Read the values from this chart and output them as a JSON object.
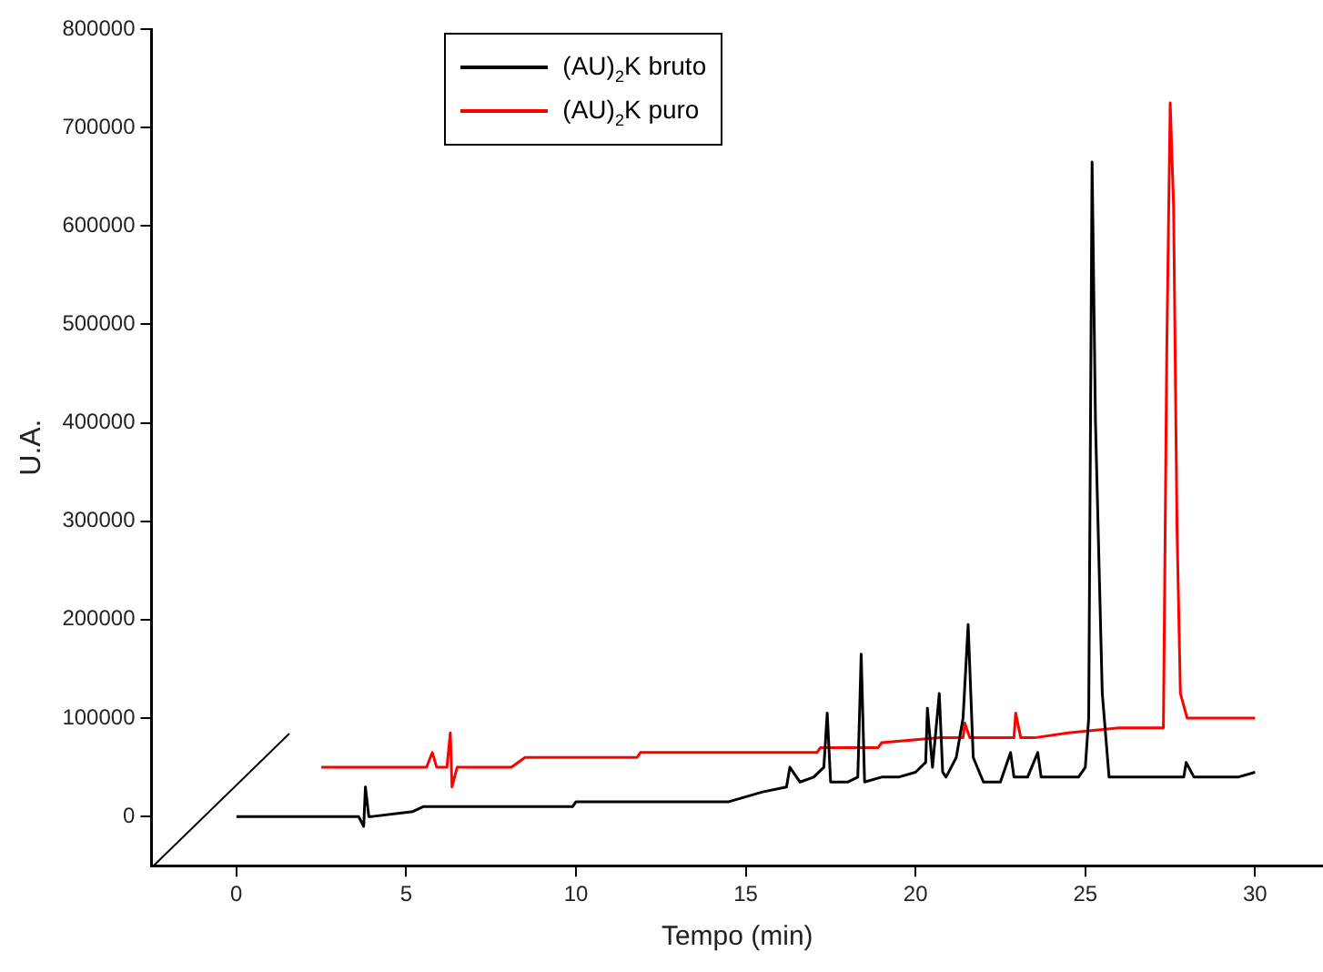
{
  "chart_data": {
    "type": "line",
    "xlabel": "Tempo (min)",
    "ylabel": "U.A.",
    "xlim": [
      -2.5,
      32
    ],
    "xticks": [
      0,
      5,
      10,
      15,
      20,
      25,
      30
    ],
    "ylim": [
      -50000,
      800000
    ],
    "yticks": [
      0,
      100000,
      200000,
      300000,
      400000,
      500000,
      600000,
      700000,
      800000
    ],
    "grid": false,
    "legend": "top",
    "marker": "none",
    "line_style": "solid",
    "series": [
      {
        "name": "(AU)$_{2}$K bruto",
        "color": "#000000",
        "x": [
          0,
          3.6,
          3.75,
          3.8,
          3.9,
          4.0,
          5.2,
          5.5,
          9.9,
          10.0,
          14.5,
          15.5,
          16.2,
          16.3,
          16.6,
          17.0,
          17.3,
          17.4,
          17.5,
          18.0,
          18.3,
          18.4,
          18.5,
          19.0,
          19.5,
          20.0,
          20.3,
          20.35,
          20.5,
          20.7,
          20.8,
          20.9,
          21.2,
          21.4,
          21.55,
          21.7,
          22.0,
          22.5,
          22.8,
          22.9,
          23.3,
          23.6,
          23.7,
          24.0,
          24.8,
          25.0,
          25.1,
          25.2,
          25.3,
          25.5,
          25.7,
          26.5,
          27.5,
          27.9,
          27.97,
          28.2,
          29.5,
          30
        ],
        "values": [
          0,
          0,
          -10000,
          30000,
          0,
          0,
          5000,
          10000,
          10000,
          15000,
          15000,
          25000,
          30000,
          50000,
          35000,
          40000,
          50000,
          105000,
          35000,
          35000,
          40000,
          165000,
          35000,
          40000,
          40000,
          45000,
          55000,
          110000,
          50000,
          125000,
          45000,
          40000,
          60000,
          100000,
          195000,
          60000,
          35000,
          35000,
          65000,
          40000,
          40000,
          65000,
          40000,
          40000,
          40000,
          50000,
          100000,
          665000,
          400000,
          125000,
          40000,
          40000,
          40000,
          40000,
          55000,
          40000,
          40000,
          45000
        ]
      },
      {
        "name": "(AU)$_{2}$K puro",
        "color": "#ff0000",
        "x": [
          2.5,
          5.6,
          5.77,
          5.9,
          6.2,
          6.3,
          6.35,
          6.5,
          8.1,
          8.5,
          11.8,
          11.9,
          14.3,
          14.4,
          17.1,
          17.2,
          18.9,
          19.0,
          20.7,
          21.4,
          21.45,
          21.6,
          22.3,
          22.9,
          22.95,
          23.1,
          23.5,
          24.5,
          26.0,
          27.0,
          27.3,
          27.4,
          27.5,
          27.6,
          27.7,
          27.8,
          28.0,
          28.2,
          29.0,
          30
        ],
        "values": [
          50000,
          50000,
          65000,
          50000,
          50000,
          85000,
          30000,
          50000,
          50000,
          60000,
          60000,
          65000,
          65000,
          65000,
          65000,
          70000,
          70000,
          75000,
          80000,
          80000,
          95000,
          80000,
          80000,
          80000,
          105000,
          80000,
          80000,
          85000,
          90000,
          90000,
          90000,
          475000,
          725000,
          620000,
          295000,
          125000,
          100000,
          100000,
          100000,
          100000
        ]
      }
    ]
  }
}
